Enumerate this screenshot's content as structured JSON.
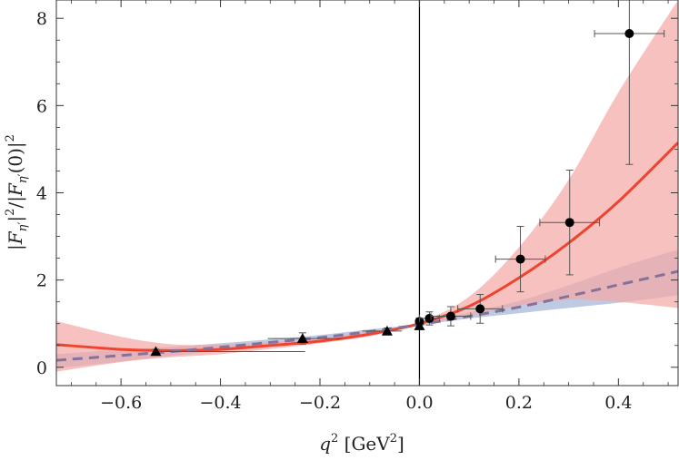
{
  "chart_data": {
    "type": "scatter",
    "xlabel": "q^2 [GeV^2]",
    "ylabel": "|F_η'|^2/|F_η'(0)|^2",
    "xlim": [
      -0.73,
      0.52
    ],
    "ylim": [
      -0.42,
      8.42
    ],
    "x_ticks": [
      -0.6,
      -0.4,
      -0.2,
      0.0,
      0.2,
      0.4
    ],
    "x_tick_labels": [
      "−0.6",
      "−0.4",
      "−0.2",
      "0.0",
      "0.2",
      "0.4"
    ],
    "y_ticks": [
      0,
      2,
      4,
      6,
      8
    ],
    "y_tick_labels": [
      "0",
      "2",
      "4",
      "6",
      "8"
    ],
    "grid": false,
    "colors": {
      "red_line": "#f0432e",
      "red_band": "#f4a9a6",
      "dashed_line": "#84729b",
      "blue_band": "#b2c1dc",
      "markers": "#000000",
      "error_bars": "#555555",
      "zero_line": "#000000"
    },
    "series": [
      {
        "style": "solid",
        "x": [
          -0.73,
          -0.6,
          -0.5,
          -0.4,
          -0.3,
          -0.2,
          -0.1,
          0.0,
          0.1,
          0.2,
          0.3,
          0.4,
          0.52
        ],
        "y": [
          0.52,
          0.41,
          0.38,
          0.41,
          0.5,
          0.6,
          0.76,
          1.0,
          1.4,
          2.05,
          2.85,
          3.8,
          5.15
        ],
        "band_lower": [
          -0.1,
          0.12,
          0.23,
          0.3,
          0.42,
          0.55,
          0.71,
          0.96,
          1.18,
          1.42,
          1.55,
          1.5,
          1.36
        ],
        "band_upper": [
          1.06,
          0.7,
          0.53,
          0.52,
          0.58,
          0.67,
          0.82,
          1.04,
          1.62,
          2.75,
          4.3,
          6.3,
          8.42
        ]
      },
      {
        "style": "dashed",
        "x": [
          -0.73,
          -0.6,
          -0.5,
          -0.4,
          -0.3,
          -0.2,
          -0.1,
          0.0,
          0.1,
          0.2,
          0.3,
          0.4,
          0.52
        ],
        "y": [
          0.16,
          0.27,
          0.36,
          0.46,
          0.57,
          0.68,
          0.82,
          0.98,
          1.17,
          1.38,
          1.63,
          1.89,
          2.2
        ],
        "band_lower": [
          -0.02,
          0.13,
          0.26,
          0.38,
          0.5,
          0.64,
          0.78,
          0.96,
          1.12,
          1.24,
          1.36,
          1.48,
          1.65
        ],
        "band_upper": [
          0.3,
          0.4,
          0.47,
          0.55,
          0.64,
          0.74,
          0.87,
          1.0,
          1.26,
          1.52,
          1.88,
          2.28,
          2.7
        ]
      }
    ],
    "points_circle": [
      {
        "x": 0.0,
        "y": 1.05,
        "xerr": 0.0,
        "yerr": 0.08
      },
      {
        "x": 0.02,
        "y": 1.12,
        "xerr": 0.02,
        "yerr": 0.15
      },
      {
        "x": 0.063,
        "y": 1.17,
        "xerr": 0.04,
        "yerr": 0.22
      },
      {
        "x": 0.122,
        "y": 1.34,
        "xerr": 0.045,
        "yerr": 0.33
      },
      {
        "x": 0.203,
        "y": 2.48,
        "xerr": 0.05,
        "yerr": 0.75
      },
      {
        "x": 0.302,
        "y": 3.32,
        "xerr": 0.06,
        "yerr": 1.2
      },
      {
        "x": 0.422,
        "y": 7.65,
        "xerr": 0.07,
        "yerr": 3.0
      }
    ],
    "points_triangle": [
      {
        "x": -0.53,
        "y": 0.36,
        "xerr_low": 0.0,
        "xerr_high": 0.3,
        "yerr": 0.05
      },
      {
        "x": -0.235,
        "y": 0.66,
        "xerr_low": 0.07,
        "xerr_high": 0.08,
        "yerr": 0.13
      },
      {
        "x": -0.065,
        "y": 0.83,
        "xerr_low": 0.05,
        "xerr_high": 0.03,
        "yerr": 0.07
      },
      {
        "x": 0.0,
        "y": 0.95,
        "xerr_low": 0.0,
        "xerr_high": 0.0,
        "yerr": 0.05
      }
    ]
  }
}
